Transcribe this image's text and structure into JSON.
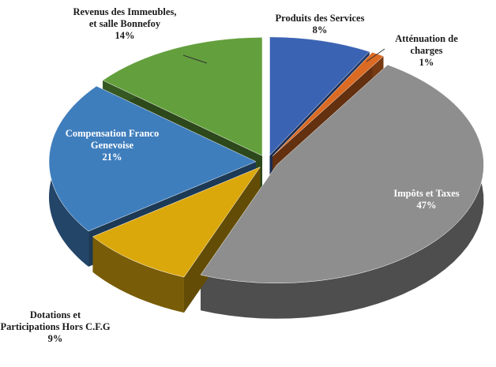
{
  "chart_data": {
    "type": "pie",
    "categories": [
      "Produits des Services",
      "Atténuation de charges",
      "Impôts et Taxes",
      "Dotations et Participations Hors C.F.G",
      "Compensation Franco Genevoise",
      "Revenus des Immeubles, et salle Bonnefoy"
    ],
    "values": [
      8,
      1,
      47,
      9,
      21,
      14
    ],
    "value_labels": [
      "8%",
      "1%",
      "47%",
      "9%",
      "21%",
      "14%"
    ],
    "colors": [
      "#3b63b3",
      "#db6a23",
      "#8e8e8e",
      "#dba80c",
      "#3f7ebd",
      "#63a03d"
    ]
  }
}
